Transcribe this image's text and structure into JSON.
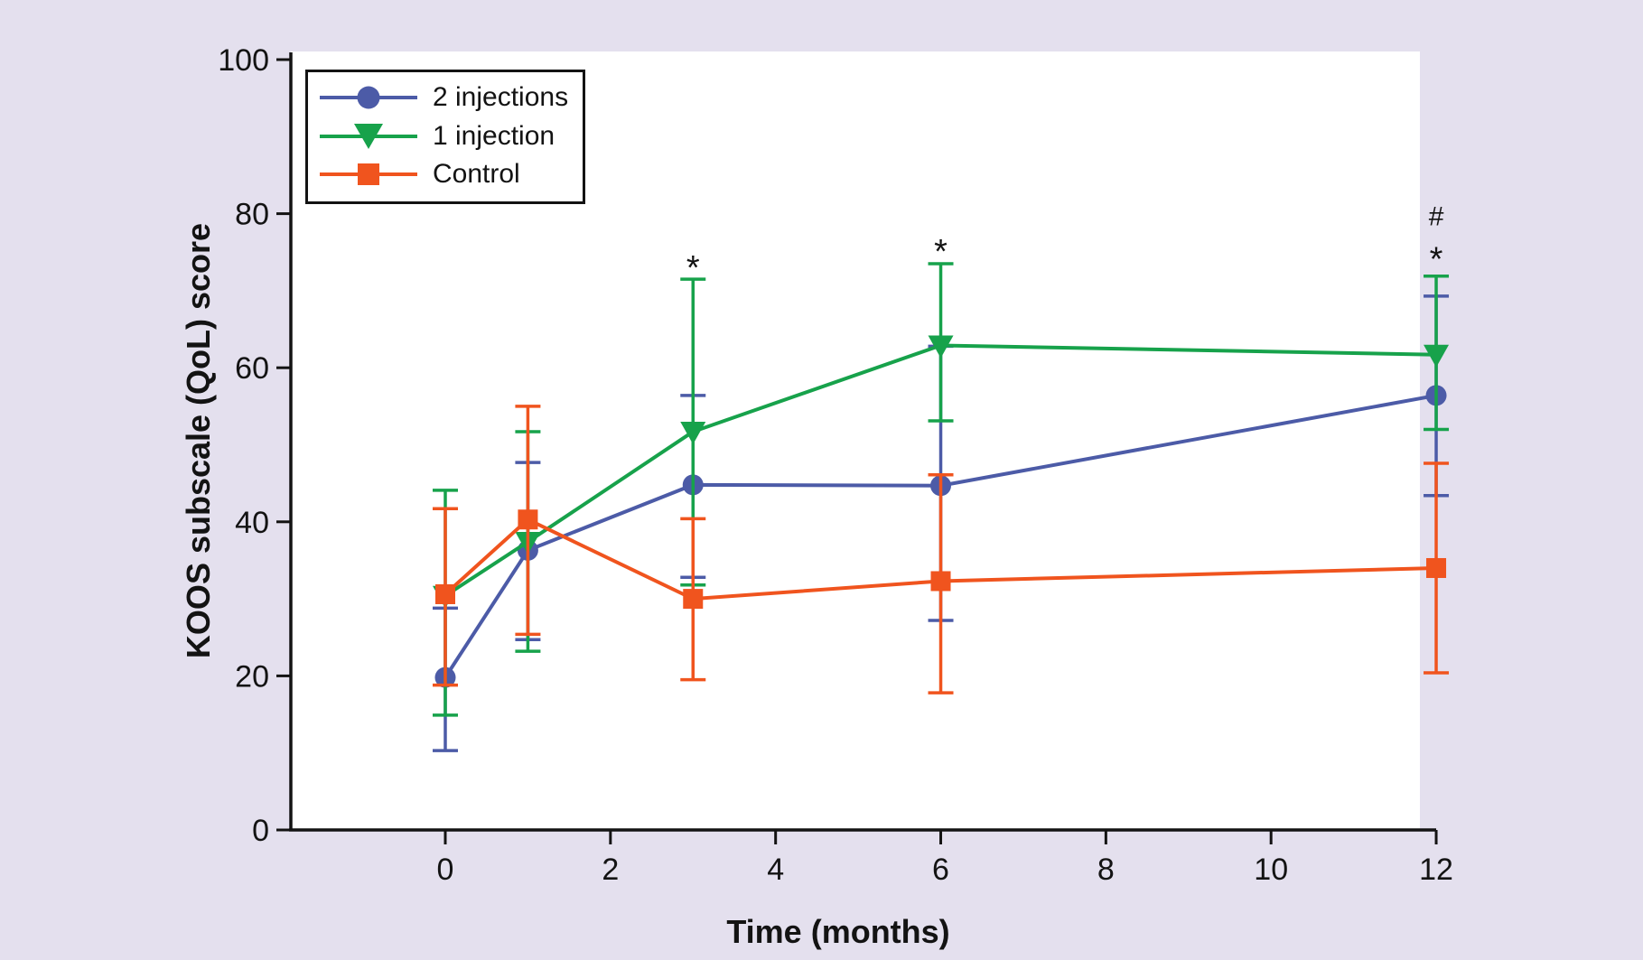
{
  "figure": {
    "background_color": "#E4E0EE",
    "plot_background_color": "#FFFFFF",
    "axis_color": "#131313"
  },
  "chart_data": {
    "type": "line",
    "title": "",
    "xlabel": "Time (months)",
    "ylabel": "KOOS subscale (QoL) score",
    "x": [
      0,
      1,
      3,
      6,
      12
    ],
    "xticks": [
      0,
      2,
      4,
      6,
      8,
      10,
      12
    ],
    "yticks": [
      0,
      20,
      40,
      60,
      80,
      100
    ],
    "xlim": [
      -1.9,
      12
    ],
    "ylim": [
      0,
      100
    ],
    "grid": false,
    "legend_position": "top-left",
    "error_bars": true,
    "series": [
      {
        "name": "2 injections",
        "marker": "circle",
        "color": "#4C5BA7",
        "means": [
          19.8,
          36.3,
          44.8,
          44.7,
          56.4
        ],
        "err_low": [
          10.3,
          24.7,
          32.8,
          27.2,
          43.4
        ],
        "err_high": [
          28.8,
          47.7,
          56.4,
          62.8,
          69.3
        ]
      },
      {
        "name": "1 injection",
        "marker": "triangle-down",
        "color": "#17A24B",
        "means": [
          30.4,
          37.4,
          51.7,
          62.9,
          61.7
        ],
        "err_low": [
          14.9,
          23.2,
          31.8,
          53.1,
          52.0
        ],
        "err_high": [
          44.1,
          51.7,
          71.5,
          73.5,
          71.9
        ]
      },
      {
        "name": "Control",
        "marker": "square",
        "color": "#F0541E",
        "means": [
          30.6,
          40.3,
          30.0,
          32.3,
          34.0
        ],
        "err_low": [
          18.8,
          25.4,
          19.5,
          17.8,
          20.4
        ],
        "err_high": [
          41.7,
          55.0,
          40.4,
          46.1,
          47.6
        ]
      }
    ],
    "annotations": [
      {
        "text": "*",
        "x": 3,
        "y": 74.0
      },
      {
        "text": "*",
        "x": 6,
        "y": 76.1
      },
      {
        "text": "#",
        "x": 12,
        "y": 79.8
      },
      {
        "text": "*",
        "x": 12,
        "y": 75.1
      }
    ]
  }
}
